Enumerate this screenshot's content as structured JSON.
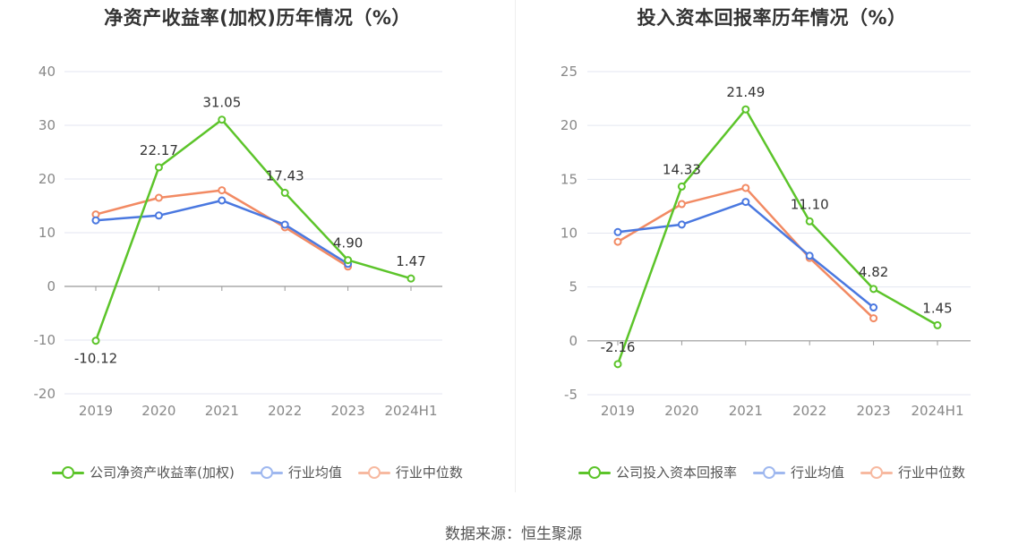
{
  "source_label": "数据来源：恒生聚源",
  "colors": {
    "company": "#5cc42a",
    "avg": "#4a78e0",
    "median": "#f28a63",
    "axis": "#888888",
    "grid": "#e3e6f0"
  },
  "chart_data": [
    {
      "type": "line",
      "title": "净资产收益率(加权)历年情况（%）",
      "categories": [
        "2019",
        "2020",
        "2021",
        "2022",
        "2023",
        "2024H1"
      ],
      "ylim": [
        -20,
        40
      ],
      "yticks": [
        -20,
        -10,
        0,
        10,
        20,
        30,
        40
      ],
      "grid": true,
      "legend_position": "bottom-center",
      "series": [
        {
          "name": "公司净资产收益率(加权)",
          "key": "company",
          "values": [
            -10.12,
            22.17,
            31.05,
            17.43,
            4.9,
            1.47
          ],
          "labels": [
            "-10.12",
            "22.17",
            "31.05",
            "17.43",
            "4.90",
            "1.47"
          ]
        },
        {
          "name": "行业均值",
          "key": "avg",
          "values": [
            12.3,
            13.2,
            16.0,
            11.5,
            4.2,
            null
          ]
        },
        {
          "name": "行业中位数",
          "key": "median",
          "values": [
            13.4,
            16.5,
            17.9,
            11.0,
            3.7,
            null
          ]
        }
      ]
    },
    {
      "type": "line",
      "title": "投入资本回报率历年情况（%）",
      "categories": [
        "2019",
        "2020",
        "2021",
        "2022",
        "2023",
        "2024H1"
      ],
      "ylim": [
        -5,
        25
      ],
      "yticks": [
        -5,
        0,
        5,
        10,
        15,
        20,
        25
      ],
      "grid": true,
      "legend_position": "bottom-center",
      "series": [
        {
          "name": "公司投入资本回报率",
          "key": "company",
          "values": [
            -2.16,
            14.33,
            21.49,
            11.1,
            4.82,
            1.45
          ],
          "labels": [
            "-2.16",
            "14.33",
            "21.49",
            "11.10",
            "4.82",
            "1.45"
          ]
        },
        {
          "name": "行业均值",
          "key": "avg",
          "values": [
            10.1,
            10.8,
            12.9,
            7.9,
            3.1,
            null
          ]
        },
        {
          "name": "行业中位数",
          "key": "median",
          "values": [
            9.2,
            12.7,
            14.2,
            7.7,
            2.1,
            null
          ]
        }
      ]
    }
  ]
}
